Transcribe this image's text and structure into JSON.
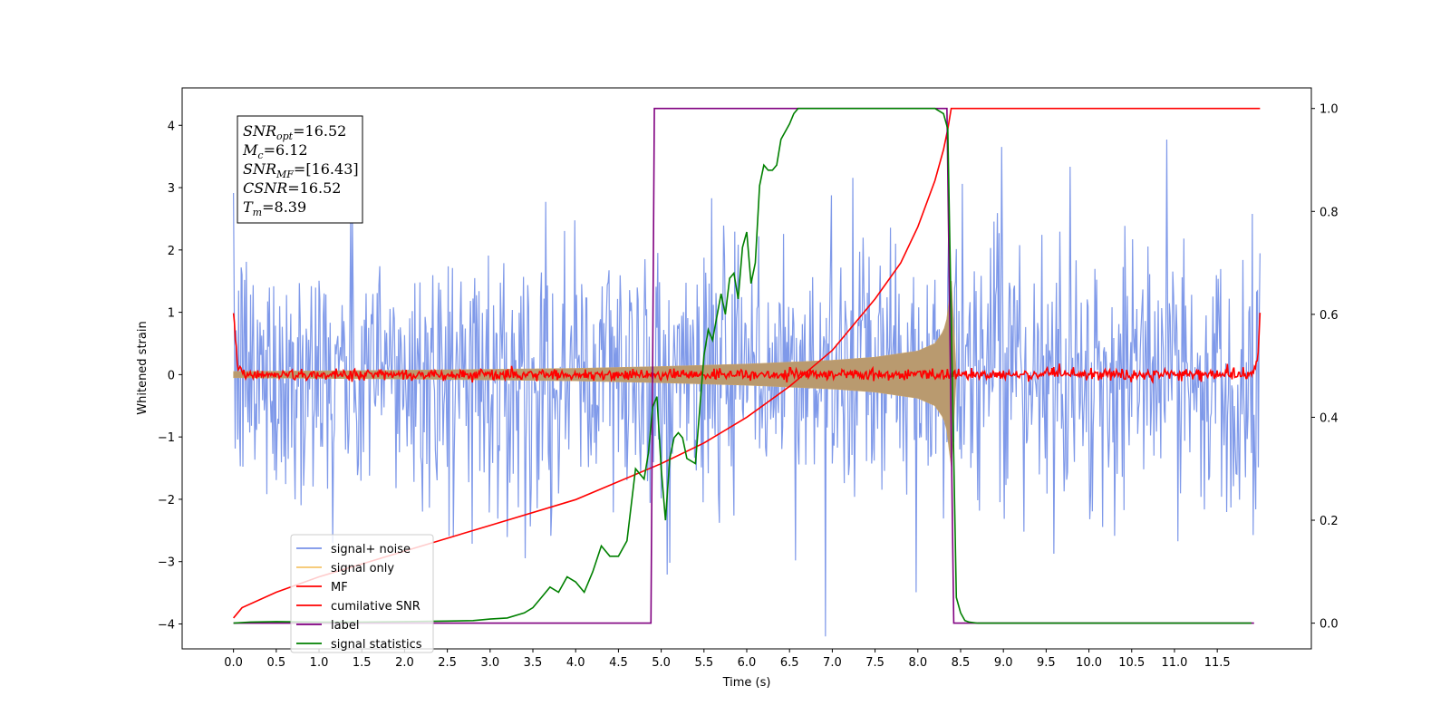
{
  "chart_data": {
    "type": "line",
    "title": "",
    "xlabel": "Time (s)",
    "ylabel": "Whitened strain",
    "ylabel_right": "",
    "xlim": [
      -0.6,
      12.6
    ],
    "ylim": [
      -4.4,
      4.6
    ],
    "ylim_right": [
      -0.05,
      1.04
    ],
    "x_ticks": [
      "0.0",
      "0.5",
      "1.0",
      "1.5",
      "2.0",
      "2.5",
      "3.0",
      "3.5",
      "4.0",
      "4.5",
      "5.0",
      "5.5",
      "6.0",
      "6.5",
      "7.0",
      "7.5",
      "8.0",
      "8.5",
      "9.0",
      "9.5",
      "10.0",
      "10.5",
      "11.0",
      "11.5"
    ],
    "y_ticks": [
      "−4",
      "−3",
      "−2",
      "−1",
      "0",
      "1",
      "2",
      "3",
      "4"
    ],
    "y_ticks_right": [
      "0.0",
      "0.2",
      "0.4",
      "0.6",
      "0.8",
      "1.0"
    ],
    "grid": false,
    "legend_position": "lower-left",
    "annotation": {
      "lines": [
        {
          "var": "SNR",
          "sub": "opt",
          "value": "=16.52"
        },
        {
          "var": "M",
          "sub": "c",
          "value": "=6.12"
        },
        {
          "var": "SNR",
          "sub": "MF",
          "value": "=[16.43]"
        },
        {
          "var": "CSNR",
          "sub": "",
          "value": "=16.52"
        },
        {
          "var": "T",
          "sub": "m",
          "value": "=8.39"
        }
      ]
    },
    "series": [
      {
        "name": "signal+ noise",
        "color": "#7893e8",
        "axis": "left",
        "style": "noise",
        "amplitude": 2.4,
        "x_range": [
          0.0,
          12.0
        ]
      },
      {
        "name": "signal only",
        "color": "#f5c46a",
        "axis": "left",
        "style": "chirp_envelope",
        "x": [
          0.0,
          2.0,
          4.0,
          5.0,
          6.0,
          7.0,
          7.5,
          8.0,
          8.2,
          8.3,
          8.35,
          8.39,
          8.45
        ],
        "envelope": [
          0.05,
          0.07,
          0.1,
          0.13,
          0.17,
          0.23,
          0.28,
          0.38,
          0.5,
          0.7,
          0.95,
          1.6,
          0.0
        ]
      },
      {
        "name": "MF",
        "color": "#ff0000",
        "axis": "left",
        "style": "mf_noise",
        "x": [
          0.0,
          0.05,
          0.15,
          11.9,
          11.97,
          12.0
        ],
        "y": [
          1.0,
          0.1,
          0.0,
          0.0,
          0.2,
          0.95
        ]
      },
      {
        "name": "cumilative SNR",
        "color": "#ff0000",
        "axis": "right",
        "x": [
          0.0,
          0.1,
          0.5,
          1.0,
          2.0,
          3.0,
          4.0,
          5.0,
          5.5,
          6.0,
          6.5,
          7.0,
          7.5,
          7.8,
          8.0,
          8.2,
          8.3,
          8.35,
          8.39,
          9.0,
          12.0
        ],
        "y": [
          0.01,
          0.03,
          0.06,
          0.09,
          0.14,
          0.19,
          0.24,
          0.31,
          0.35,
          0.4,
          0.46,
          0.53,
          0.63,
          0.7,
          0.77,
          0.86,
          0.92,
          0.96,
          1.0,
          1.0,
          1.0
        ]
      },
      {
        "name": "label",
        "color": "#800080",
        "axis": "right",
        "x": [
          0.0,
          4.88,
          4.92,
          8.34,
          8.42,
          11.93
        ],
        "y": [
          0.0,
          0.0,
          1.0,
          1.0,
          0.0,
          0.0
        ]
      },
      {
        "name": "signal statistics",
        "color": "#008000",
        "axis": "right",
        "x": [
          0.0,
          0.2,
          0.5,
          1.0,
          1.5,
          2.0,
          2.5,
          2.8,
          3.0,
          3.2,
          3.4,
          3.5,
          3.6,
          3.7,
          3.8,
          3.9,
          4.0,
          4.1,
          4.2,
          4.3,
          4.4,
          4.5,
          4.6,
          4.7,
          4.8,
          4.85,
          4.9,
          4.95,
          5.0,
          5.05,
          5.1,
          5.15,
          5.2,
          5.25,
          5.3,
          5.4,
          5.5,
          5.55,
          5.6,
          5.7,
          5.75,
          5.8,
          5.85,
          5.9,
          5.95,
          6.0,
          6.05,
          6.1,
          6.15,
          6.2,
          6.25,
          6.3,
          6.35,
          6.4,
          6.5,
          6.55,
          6.6,
          6.7,
          6.8,
          7.0,
          7.5,
          8.0,
          8.2,
          8.3,
          8.35,
          8.4,
          8.45,
          8.5,
          8.55,
          8.6,
          8.7,
          9.0,
          11.9
        ],
        "y": [
          0.0,
          0.002,
          0.003,
          0.002,
          0.002,
          0.003,
          0.004,
          0.005,
          0.008,
          0.01,
          0.02,
          0.03,
          0.05,
          0.07,
          0.06,
          0.09,
          0.08,
          0.06,
          0.1,
          0.15,
          0.13,
          0.13,
          0.16,
          0.3,
          0.28,
          0.33,
          0.42,
          0.44,
          0.3,
          0.2,
          0.32,
          0.36,
          0.37,
          0.36,
          0.32,
          0.31,
          0.52,
          0.57,
          0.55,
          0.64,
          0.6,
          0.67,
          0.68,
          0.63,
          0.73,
          0.76,
          0.66,
          0.7,
          0.85,
          0.89,
          0.88,
          0.88,
          0.89,
          0.94,
          0.97,
          0.99,
          1.0,
          1.0,
          1.0,
          1.0,
          1.0,
          1.0,
          1.0,
          0.99,
          0.96,
          0.5,
          0.05,
          0.02,
          0.005,
          0.002,
          0.0,
          0.0,
          0.0
        ]
      }
    ]
  }
}
